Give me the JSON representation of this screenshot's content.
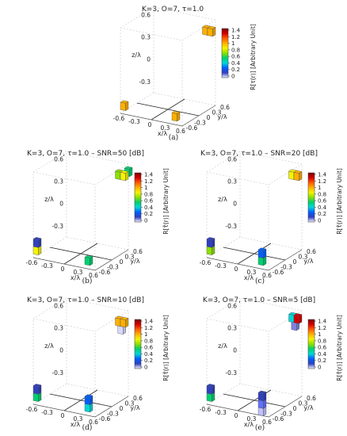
{
  "colorbar": {
    "label": "R[τ(r)] [Arbitrary Unit]",
    "label_hat": "R[τ̂(r)] [Arbitrary Unit]",
    "ticks": [
      "1.4",
      "1.2",
      "1",
      "0.8",
      "0.6",
      "0.4",
      "0.2",
      "0"
    ],
    "colors": [
      "#7a0000",
      "#d40000",
      "#ff5a00",
      "#ffb000",
      "#f4f400",
      "#8de000",
      "#00d070",
      "#00d8d8",
      "#0060ff",
      "#3040c0",
      "#f0f0ff"
    ]
  },
  "axes": {
    "xlabel": "x/λ",
    "ylabel": "y/λ",
    "zlabel": "z/λ",
    "xticks": [
      "-0.6",
      "-0.3",
      "0",
      "0.3",
      "0.6"
    ],
    "yticks": [
      "-0.6",
      "-0.3",
      "0",
      "0.3",
      "0.6"
    ],
    "zticks": [
      "0.6",
      "0.3",
      "0",
      "-0.3"
    ]
  },
  "chart_data": [
    {
      "type": "scatter",
      "panel": "(a)",
      "title": "K=3, O=7, τ=1.0",
      "zlim": [
        -0.45,
        0.7
      ],
      "voxels": [
        {
          "x": 0.55,
          "y": 0.55,
          "z": 0.55,
          "value": 0.95,
          "color": "#ffb000"
        },
        {
          "x": 0.45,
          "y": 0.55,
          "z": 0.55,
          "value": 0.95,
          "color": "#ffb000"
        },
        {
          "x": -0.55,
          "y": -0.55,
          "z": -0.35,
          "value": 0.95,
          "color": "#ffb000"
        },
        {
          "x": 0.45,
          "y": -0.55,
          "z": -0.35,
          "value": 0.95,
          "color": "#ffb000"
        }
      ]
    },
    {
      "type": "scatter",
      "panel": "(b)",
      "title": "K=3, O=7, τ=1.0 – SNR=50 [dB]",
      "zlim": [
        -0.45,
        0.7
      ],
      "voxels": [
        {
          "x": 0.55,
          "y": 0.55,
          "z": 0.55,
          "value": 0.6,
          "color": "#f4f400"
        },
        {
          "x": 0.45,
          "y": 0.55,
          "z": 0.55,
          "value": 0.5,
          "color": "#8de000"
        },
        {
          "x": 0.6,
          "y": 0.6,
          "z": 0.6,
          "value": 0.4,
          "color": "#00d070"
        },
        {
          "x": -0.55,
          "y": -0.55,
          "z": -0.25,
          "value": 0.2,
          "color": "#3040c0"
        },
        {
          "x": -0.55,
          "y": -0.55,
          "z": -0.35,
          "value": 0.6,
          "color": "#f4f400"
        },
        {
          "x": 0.45,
          "y": -0.55,
          "z": -0.35,
          "value": 0.4,
          "color": "#00d070"
        }
      ]
    },
    {
      "type": "scatter",
      "panel": "(c)",
      "title": "K=3, O=7, τ=1.0 – SNR=20 [dB]",
      "zlim": [
        -0.45,
        0.7
      ],
      "voxels": [
        {
          "x": 0.55,
          "y": 0.55,
          "z": 0.55,
          "value": 0.8,
          "color": "#ffb000"
        },
        {
          "x": 0.45,
          "y": 0.55,
          "z": 0.55,
          "value": 0.6,
          "color": "#f4f400"
        },
        {
          "x": -0.55,
          "y": -0.55,
          "z": -0.25,
          "value": 0.2,
          "color": "#3040c0"
        },
        {
          "x": -0.55,
          "y": -0.55,
          "z": -0.35,
          "value": 0.5,
          "color": "#8de000"
        },
        {
          "x": 0.45,
          "y": -0.55,
          "z": -0.25,
          "value": 0.2,
          "color": "#0060ff"
        },
        {
          "x": 0.45,
          "y": -0.55,
          "z": -0.35,
          "value": 0.4,
          "color": "#00d070"
        }
      ]
    },
    {
      "type": "scatter",
      "panel": "(d)",
      "title": "K=3, O=7, τ=1.0 – SNR=10 [dB]",
      "zlim": [
        -0.45,
        0.7
      ],
      "voxels": [
        {
          "x": 0.55,
          "y": 0.55,
          "z": 0.55,
          "value": 0.95,
          "color": "#ffb000"
        },
        {
          "x": 0.45,
          "y": 0.55,
          "z": 0.55,
          "value": 0.9,
          "color": "#ffb000"
        },
        {
          "x": 0.5,
          "y": 0.55,
          "z": 0.45,
          "value": 0.05,
          "color": "#d8d8ff"
        },
        {
          "x": -0.55,
          "y": -0.55,
          "z": -0.25,
          "value": 0.2,
          "color": "#3040c0"
        },
        {
          "x": -0.55,
          "y": -0.55,
          "z": -0.35,
          "value": 0.4,
          "color": "#00d070"
        },
        {
          "x": 0.45,
          "y": -0.55,
          "z": -0.25,
          "value": 0.2,
          "color": "#0060ff"
        },
        {
          "x": 0.45,
          "y": -0.55,
          "z": -0.35,
          "value": 0.35,
          "color": "#00d8d8"
        }
      ]
    },
    {
      "type": "scatter",
      "panel": "(e)",
      "title": "K=3, O=7, τ=1.0 – SNR=5 [dB]",
      "zlim": [
        -0.45,
        0.7
      ],
      "voxels": [
        {
          "x": 0.55,
          "y": 0.55,
          "z": 0.6,
          "value": 1.2,
          "color": "#d40000"
        },
        {
          "x": 0.45,
          "y": 0.55,
          "z": 0.6,
          "value": 0.3,
          "color": "#00d8d8"
        },
        {
          "x": 0.5,
          "y": 0.55,
          "z": 0.5,
          "value": 0.1,
          "color": "#8080e0"
        },
        {
          "x": -0.55,
          "y": -0.55,
          "z": -0.25,
          "value": 0.25,
          "color": "#3040c0"
        },
        {
          "x": -0.55,
          "y": -0.55,
          "z": -0.35,
          "value": 0.4,
          "color": "#00d070"
        },
        {
          "x": 0.45,
          "y": -0.55,
          "z": -0.2,
          "value": 0.2,
          "color": "#3040c0"
        },
        {
          "x": 0.45,
          "y": -0.55,
          "z": -0.3,
          "value": 0.15,
          "color": "#6070ff"
        },
        {
          "x": 0.45,
          "y": -0.55,
          "z": -0.4,
          "value": 0.05,
          "color": "#c0c0ff"
        }
      ]
    }
  ]
}
